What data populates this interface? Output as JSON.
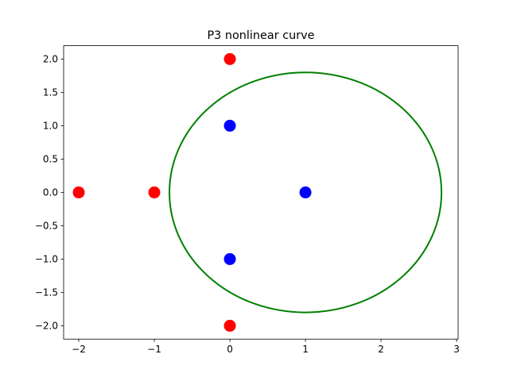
{
  "chart_data": {
    "type": "scatter",
    "title": "P3 nonlinear curve",
    "xlabel": "",
    "ylabel": "",
    "xlim": [
      -2.2,
      3.02
    ],
    "ylim": [
      -2.2,
      2.2
    ],
    "xticks": [
      -2,
      -1,
      0,
      1,
      2,
      3
    ],
    "xtick_labels": [
      "−2",
      "−1",
      "0",
      "1",
      "2",
      "3"
    ],
    "yticks": [
      2.0,
      1.5,
      1.0,
      0.5,
      0.0,
      -0.5,
      -1.0,
      -1.5,
      -2.0
    ],
    "ytick_labels": [
      "2.0",
      "1.5",
      "1.0",
      "0.5",
      "0.0",
      "−0.5",
      "−1.0",
      "−1.5",
      "−2.0"
    ],
    "grid": false,
    "series": [
      {
        "color": "#ff0000",
        "marker": "circle",
        "points": [
          [
            0,
            2
          ],
          [
            -2,
            0
          ],
          [
            -1,
            0
          ],
          [
            0,
            -2
          ]
        ]
      },
      {
        "color": "#0000ff",
        "marker": "circle",
        "points": [
          [
            0,
            1
          ],
          [
            1,
            0
          ],
          [
            0,
            -1
          ]
        ]
      },
      {
        "color": "#008000",
        "marker": "curve",
        "shape": "circle",
        "center": [
          1,
          0
        ],
        "radius": 1.8
      }
    ]
  }
}
